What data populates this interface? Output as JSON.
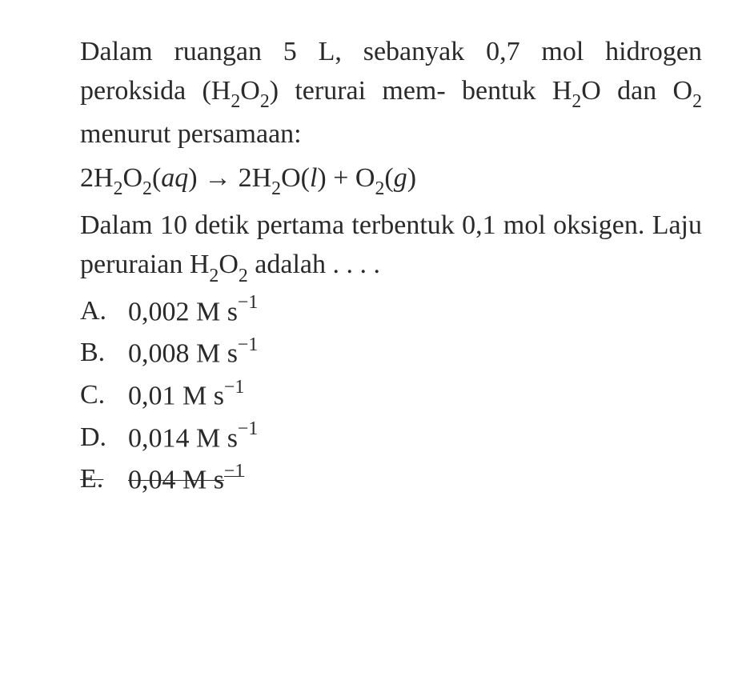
{
  "question": {
    "line1_pre": "Dalam ruangan ",
    "volume": "5 L",
    "line1_mid": ", sebanyak ",
    "mol": "0,7 mol",
    "line2_pre": "hidrogen peroksida (H",
    "line2_post": ") terurai mem-",
    "line3_pre": "bentuk H",
    "line3_mid": "O dan O",
    "line3_post": " menurut persamaan:",
    "eq_lhs_coef": "2H",
    "eq_lhs_state": "aq",
    "eq_arrow": " → ",
    "eq_rhs1_coef": "2H",
    "eq_rhs1_state": "l",
    "eq_plus": " + ",
    "eq_rhs2_state": "g",
    "line5_pre": "Dalam ",
    "time": "10",
    "line5_post": " detik pertama terbentuk",
    "line6_pre": "0,1 mol oksigen. Laju peruraian H",
    "line7": "adalah . . . ."
  },
  "options": [
    {
      "letter": "A.",
      "value": "0,002 M s",
      "exp": "−1",
      "strike": false
    },
    {
      "letter": "B.",
      "value": "0,008 M s",
      "exp": "−1",
      "strike": false
    },
    {
      "letter": "C.",
      "value": "0,01 M s",
      "exp": "−1",
      "strike": false
    },
    {
      "letter": "D.",
      "value": "0,014 M s",
      "exp": "−1",
      "strike": false
    },
    {
      "letter": "E.",
      "value": "0,04 M s",
      "exp": "−1",
      "strike": true
    }
  ],
  "colors": {
    "text": "#2a2a2a",
    "background": "#ffffff"
  },
  "typography": {
    "base_fontsize_pt": 26,
    "font_family": "Georgia, Times New Roman, serif"
  }
}
